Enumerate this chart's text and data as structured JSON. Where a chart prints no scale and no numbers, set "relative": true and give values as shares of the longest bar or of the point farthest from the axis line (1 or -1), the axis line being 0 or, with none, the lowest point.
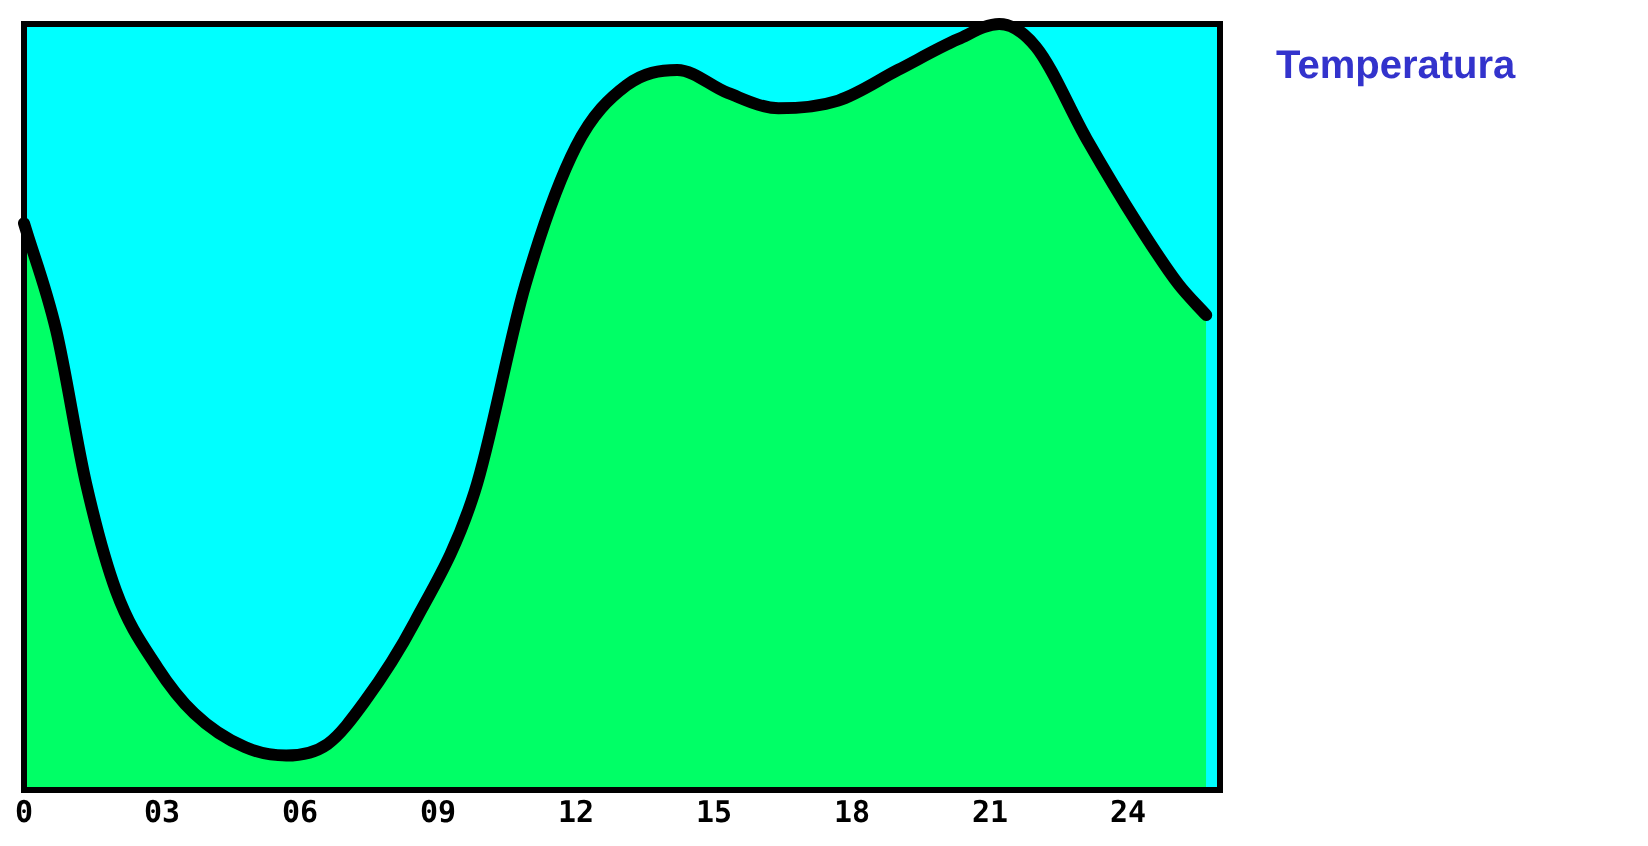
{
  "chart_data": {
    "type": "area",
    "title": "Temperatura",
    "relative": true,
    "xlim": [
      0,
      26
    ],
    "xticks": [
      {
        "value": 0,
        "label": "0"
      },
      {
        "value": 3,
        "label": "03"
      },
      {
        "value": 6,
        "label": "06"
      },
      {
        "value": 9,
        "label": "09"
      },
      12,
      15,
      18,
      21,
      24
    ],
    "x": [
      0,
      0.7,
      1.35,
      2,
      2.9,
      3.7,
      4.8,
      5.7,
      6.6,
      7.4,
      8.5,
      9.8,
      10.9,
      12,
      13.1,
      14.2,
      15.3,
      16.4,
      17.7,
      19,
      20.3,
      21.2,
      22,
      23.1,
      24.2,
      25.1,
      25.7
    ],
    "series": [
      {
        "color": "#00ff66",
        "values": [
          0.74,
          0.6,
          0.4,
          0.26,
          0.16,
          0.1,
          0.056,
          0.045,
          0.06,
          0.115,
          0.22,
          0.39,
          0.66,
          0.84,
          0.92,
          0.94,
          0.91,
          0.89,
          0.9,
          0.94,
          0.98,
          1,
          0.97,
          0.85,
          0.74,
          0.66,
          0.62
        ]
      }
    ],
    "bands": [
      {
        "axis": "y",
        "from": 0,
        "to": 1,
        "color": "#00ffff"
      }
    ]
  }
}
